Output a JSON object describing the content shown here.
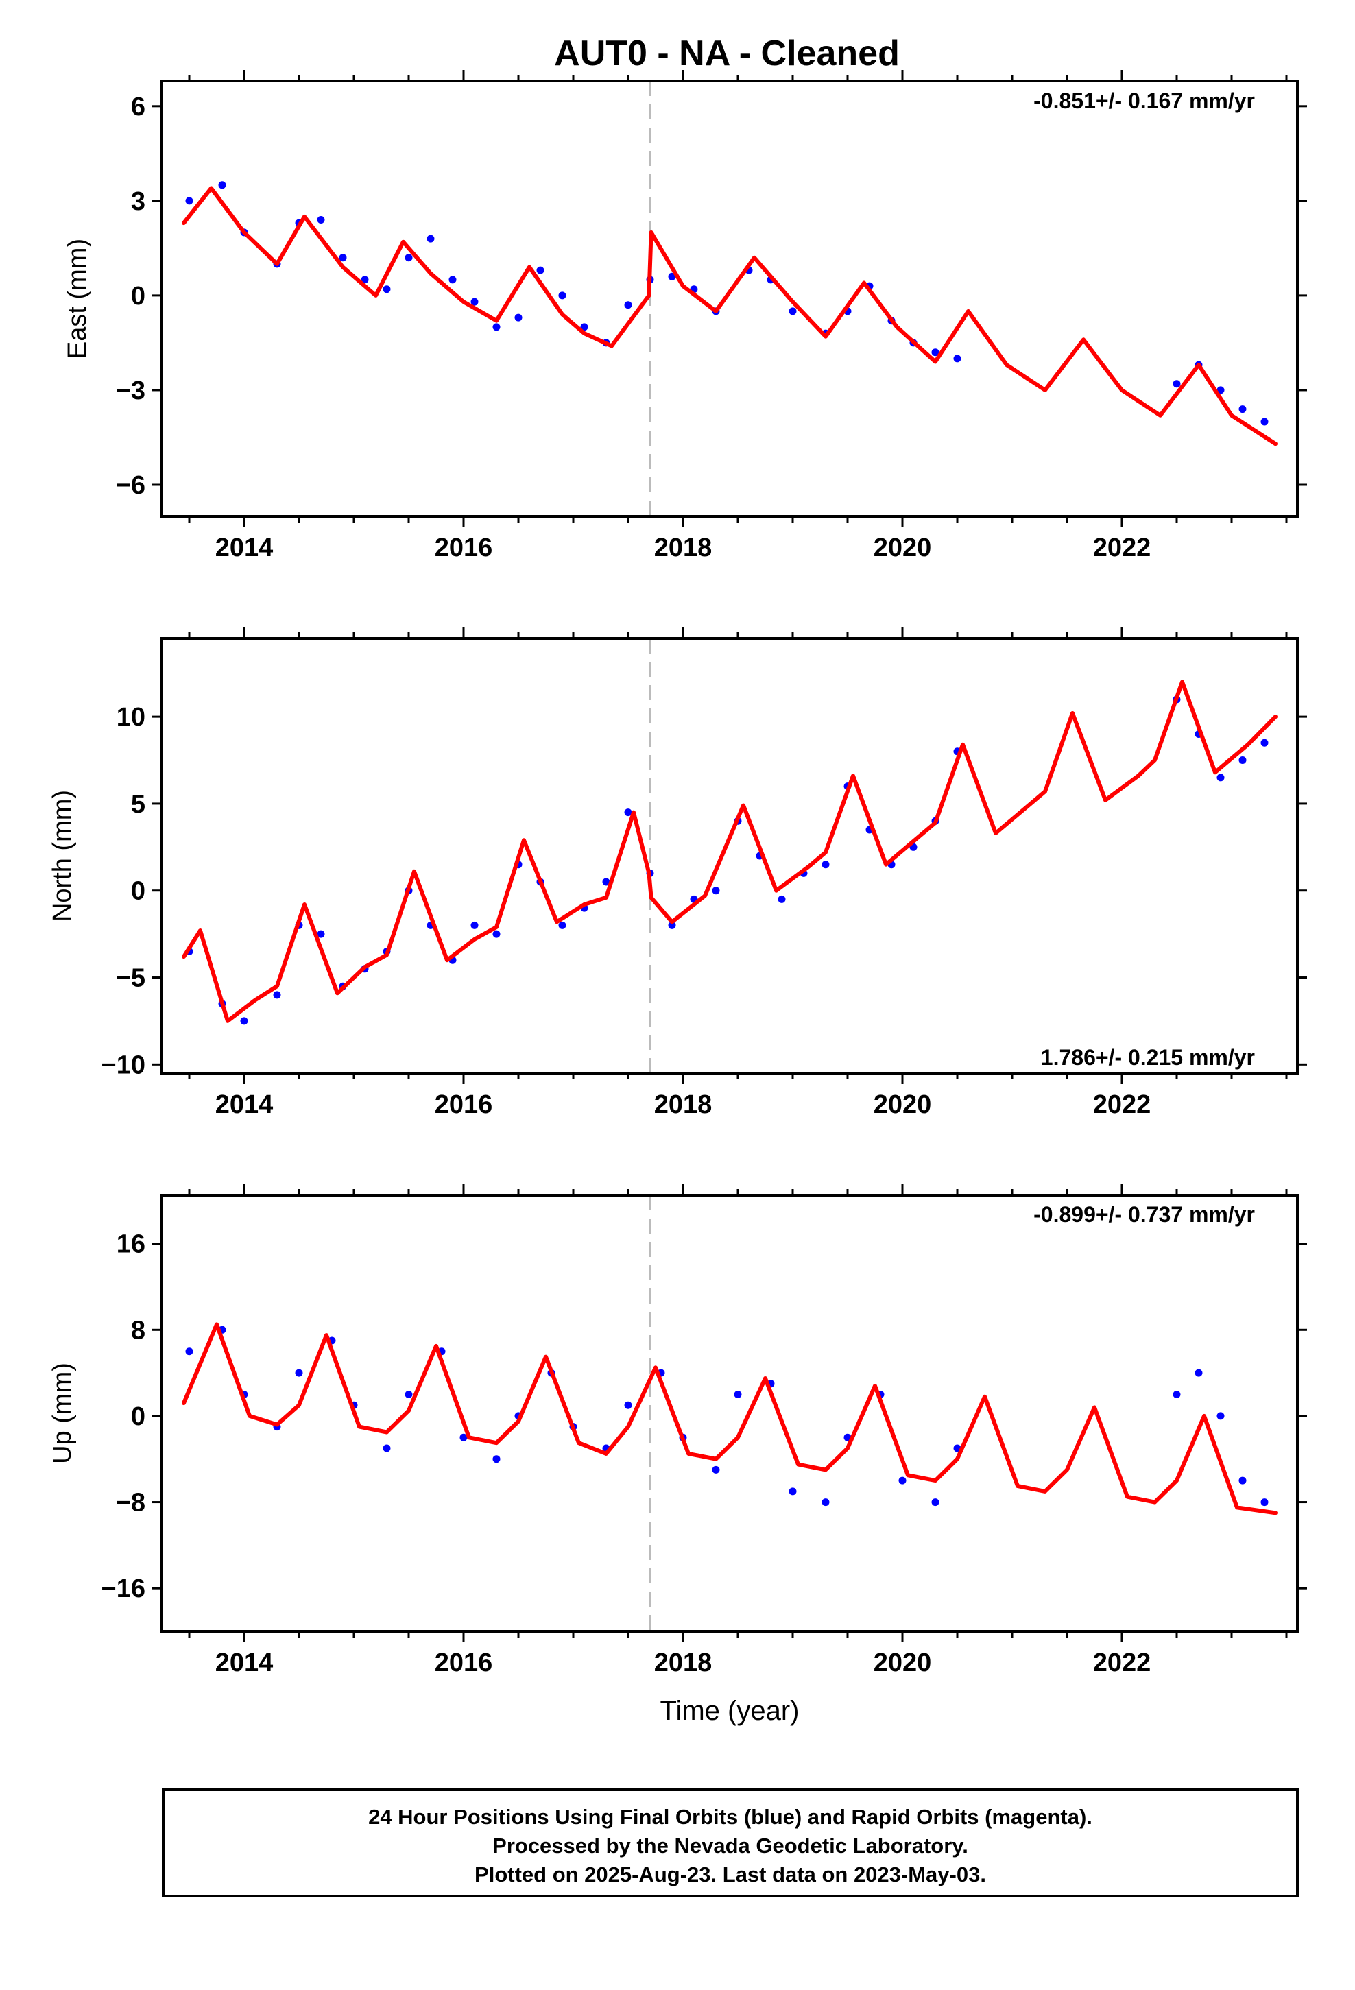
{
  "chart_data": {
    "type": "scatter",
    "title": "AUT0  - NA - Cleaned",
    "xlabel": "Time (year)",
    "xlim": [
      2013.25,
      2023.6
    ],
    "xticks": [
      2014,
      2016,
      2018,
      2020,
      2022
    ],
    "step_marker_x": 2017.7,
    "colors": {
      "points": "#0000ff",
      "model": "#ff0000",
      "marker": "#bbbbbb"
    },
    "panels": [
      {
        "name": "east",
        "ylabel": "East (mm)",
        "ylim": [
          -7,
          6.8
        ],
        "yticks": [
          6,
          3,
          0,
          -3,
          -6
        ],
        "ytick_labels": [
          "6",
          "3",
          "0",
          "−3",
          "−6"
        ],
        "rate": "-0.851+/- 0.167 mm/yr",
        "rate_position": "top-right",
        "series": [
          {
            "name": "Final Orbits (blue)",
            "x": [
              2013.5,
              2013.8,
              2014.0,
              2014.3,
              2014.5,
              2014.7,
              2014.9,
              2015.1,
              2015.3,
              2015.5,
              2015.7,
              2015.9,
              2016.1,
              2016.3,
              2016.5,
              2016.7,
              2016.9,
              2017.1,
              2017.3,
              2017.5,
              2017.7,
              2017.9,
              2018.1,
              2018.3,
              2018.6,
              2018.8,
              2019.0,
              2019.3,
              2019.5,
              2019.7,
              2019.9,
              2020.1,
              2020.3,
              2020.5,
              2022.5,
              2022.7,
              2022.9,
              2023.1,
              2023.3
            ],
            "y": [
              3.0,
              3.5,
              2.0,
              1.0,
              2.3,
              2.4,
              1.2,
              0.5,
              0.2,
              1.2,
              1.8,
              0.5,
              -0.2,
              -1.0,
              -0.7,
              0.8,
              0.0,
              -1.0,
              -1.5,
              -0.3,
              0.5,
              0.6,
              0.2,
              -0.5,
              0.8,
              0.5,
              -0.5,
              -1.2,
              -0.5,
              0.3,
              -0.8,
              -1.5,
              -1.8,
              -2.0,
              -2.8,
              -2.2,
              -3.0,
              -3.6,
              -4.0
            ]
          }
        ],
        "model": {
          "x": [
            2013.45,
            2013.7,
            2014.0,
            2014.3,
            2014.55,
            2014.9,
            2015.2,
            2015.45,
            2015.7,
            2016.0,
            2016.3,
            2016.6,
            2016.9,
            2017.1,
            2017.35,
            2017.69,
            2017.71,
            2018.0,
            2018.3,
            2018.65,
            2019.0,
            2019.3,
            2019.65,
            2019.95,
            2020.3,
            2020.6,
            2020.95,
            2021.3,
            2021.65,
            2022.0,
            2022.35,
            2022.7,
            2023.0,
            2023.4
          ],
          "y": [
            2.3,
            3.4,
            2.0,
            1.0,
            2.5,
            0.9,
            0.0,
            1.7,
            0.7,
            -0.2,
            -0.8,
            0.9,
            -0.6,
            -1.2,
            -1.6,
            0.0,
            2.0,
            0.3,
            -0.5,
            1.2,
            -0.2,
            -1.3,
            0.4,
            -1.0,
            -2.1,
            -0.5,
            -2.2,
            -3.0,
            -1.4,
            -3.0,
            -3.8,
            -2.2,
            -3.8,
            -4.7
          ]
        }
      },
      {
        "name": "north",
        "ylabel": "North (mm)",
        "ylim": [
          -10.5,
          14.5
        ],
        "yticks": [
          10,
          5,
          0,
          -5,
          -10
        ],
        "ytick_labels": [
          "10",
          "5",
          "0",
          "−5",
          "−10"
        ],
        "rate": "1.786+/- 0.215 mm/yr",
        "rate_position": "bottom-right",
        "series": [
          {
            "name": "Final Orbits (blue)",
            "x": [
              2013.5,
              2013.8,
              2014.0,
              2014.3,
              2014.5,
              2014.7,
              2014.9,
              2015.1,
              2015.3,
              2015.5,
              2015.7,
              2015.9,
              2016.1,
              2016.3,
              2016.5,
              2016.7,
              2016.9,
              2017.1,
              2017.3,
              2017.5,
              2017.7,
              2017.9,
              2018.1,
              2018.3,
              2018.5,
              2018.7,
              2018.9,
              2019.1,
              2019.3,
              2019.5,
              2019.7,
              2019.9,
              2020.1,
              2020.3,
              2020.5,
              2022.5,
              2022.7,
              2022.9,
              2023.1,
              2023.3
            ],
            "y": [
              -3.5,
              -6.5,
              -7.5,
              -6.0,
              -2.0,
              -2.5,
              -5.5,
              -4.5,
              -3.5,
              0.0,
              -2.0,
              -4.0,
              -2.0,
              -2.5,
              1.5,
              0.5,
              -2.0,
              -1.0,
              0.5,
              4.5,
              1.0,
              -2.0,
              -0.5,
              0.0,
              4.0,
              2.0,
              -0.5,
              1.0,
              1.5,
              6.0,
              3.5,
              1.5,
              2.5,
              4.0,
              8.0,
              11.0,
              9.0,
              6.5,
              7.5,
              8.5
            ]
          }
        ],
        "model": {
          "x": [
            2013.45,
            2013.6,
            2013.85,
            2014.1,
            2014.3,
            2014.55,
            2014.85,
            2015.1,
            2015.3,
            2015.55,
            2015.85,
            2016.1,
            2016.3,
            2016.55,
            2016.85,
            2017.1,
            2017.3,
            2017.55,
            2017.69,
            2017.71,
            2017.9,
            2018.2,
            2018.55,
            2018.85,
            2019.15,
            2019.3,
            2019.55,
            2019.85,
            2020.15,
            2020.3,
            2020.55,
            2020.85,
            2021.15,
            2021.3,
            2021.55,
            2021.85,
            2022.15,
            2022.3,
            2022.55,
            2022.85,
            2023.15,
            2023.4
          ],
          "y": [
            -3.8,
            -2.3,
            -7.5,
            -6.3,
            -5.5,
            -0.8,
            -5.9,
            -4.4,
            -3.7,
            1.1,
            -4.0,
            -2.8,
            -2.1,
            2.9,
            -1.8,
            -0.8,
            -0.4,
            4.5,
            1.0,
            -0.4,
            -1.8,
            -0.3,
            4.9,
            0.0,
            1.4,
            2.2,
            6.6,
            1.5,
            3.1,
            3.9,
            8.4,
            3.3,
            4.9,
            5.7,
            10.2,
            5.2,
            6.6,
            7.5,
            12.0,
            6.8,
            8.4,
            10.0
          ]
        }
      },
      {
        "name": "up",
        "ylabel": "Up (mm)",
        "ylim": [
          -20,
          20.5
        ],
        "yticks": [
          16,
          8,
          0,
          -8,
          -16
        ],
        "ytick_labels": [
          "16",
          "8",
          "0",
          "−8",
          "−16"
        ],
        "rate": "-0.899+/- 0.737 mm/yr",
        "rate_position": "top-right",
        "series": [
          {
            "name": "Final Orbits (blue)",
            "x": [
              2013.5,
              2013.8,
              2014.0,
              2014.3,
              2014.5,
              2014.8,
              2015.0,
              2015.3,
              2015.5,
              2015.8,
              2016.0,
              2016.3,
              2016.5,
              2016.8,
              2017.0,
              2017.3,
              2017.5,
              2017.8,
              2018.0,
              2018.3,
              2018.5,
              2018.8,
              2019.0,
              2019.3,
              2019.5,
              2019.8,
              2020.0,
              2020.3,
              2020.5,
              2022.5,
              2022.7,
              2022.9,
              2023.1,
              2023.3
            ],
            "y": [
              6.0,
              8.0,
              2.0,
              -1.0,
              4.0,
              7.0,
              1.0,
              -3.0,
              2.0,
              6.0,
              -2.0,
              -4.0,
              0.0,
              4.0,
              -1.0,
              -3.0,
              1.0,
              4.0,
              -2.0,
              -5.0,
              2.0,
              3.0,
              -7.0,
              -8.0,
              -2.0,
              2.0,
              -6.0,
              -8.0,
              -3.0,
              2.0,
              4.0,
              0.0,
              -6.0,
              -8.0
            ]
          }
        ],
        "model": {
          "x": [
            2013.45,
            2013.75,
            2014.05,
            2014.3,
            2014.5,
            2014.75,
            2015.05,
            2015.3,
            2015.5,
            2015.75,
            2016.05,
            2016.3,
            2016.5,
            2016.75,
            2017.05,
            2017.3,
            2017.5,
            2017.75,
            2018.05,
            2018.3,
            2018.5,
            2018.75,
            2019.05,
            2019.3,
            2019.5,
            2019.75,
            2020.05,
            2020.3,
            2020.5,
            2020.75,
            2021.05,
            2021.3,
            2021.5,
            2021.75,
            2022.05,
            2022.3,
            2022.5,
            2022.75,
            2023.05,
            2023.4
          ],
          "y": [
            1.2,
            8.5,
            0.0,
            -0.8,
            1.0,
            7.5,
            -1.0,
            -1.5,
            0.5,
            6.5,
            -2.0,
            -2.5,
            -0.5,
            5.5,
            -2.5,
            -3.5,
            -1.0,
            4.5,
            -3.5,
            -4.0,
            -2.0,
            3.5,
            -4.5,
            -5.0,
            -3.0,
            2.8,
            -5.5,
            -6.0,
            -4.0,
            1.8,
            -6.5,
            -7.0,
            -5.0,
            0.8,
            -7.5,
            -8.0,
            -6.0,
            0.0,
            -8.5,
            -9.0
          ]
        }
      }
    ]
  },
  "footer": {
    "line1": "24 Hour Positions Using Final Orbits (blue) and Rapid Orbits (magenta).",
    "line2": "Processed by the Nevada Geodetic Laboratory.",
    "line3": "Plotted on 2025-Aug-23. Last data on 2023-May-03."
  }
}
